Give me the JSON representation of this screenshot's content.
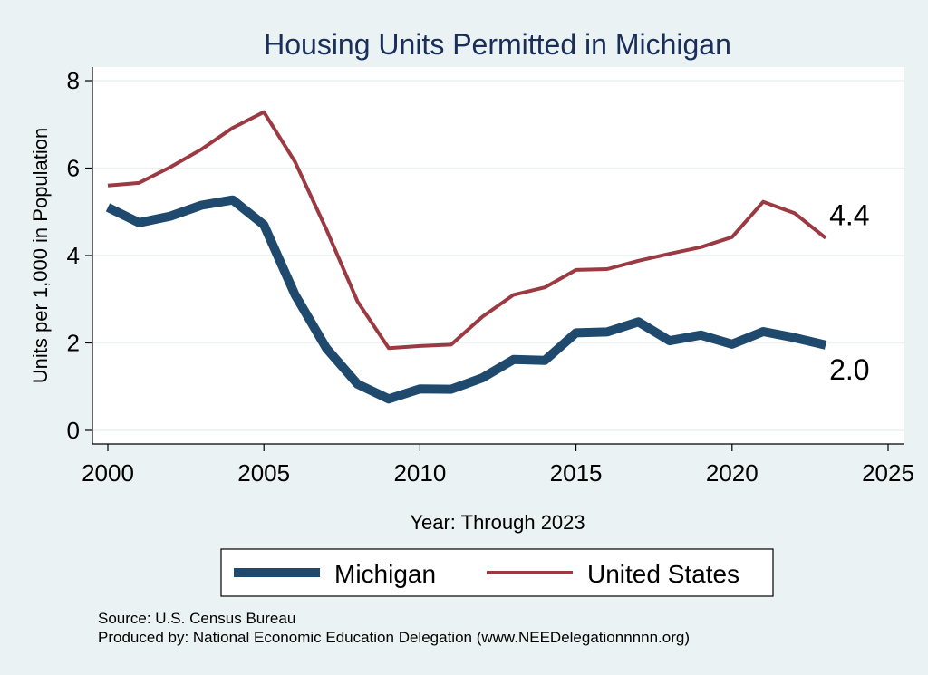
{
  "chart_data": {
    "type": "line",
    "title": "Housing Units Permitted in Michigan",
    "xlabel": "Year: Through 2023",
    "ylabel": "Units per 1,000 in Population",
    "xlim": [
      2000,
      2025
    ],
    "ylim": [
      0,
      8
    ],
    "xticks": [
      "2000",
      "2005",
      "2010",
      "2015",
      "2020",
      "2025"
    ],
    "yticks": [
      "0",
      "2",
      "4",
      "6",
      "8"
    ],
    "grid": true,
    "legend_placement": "bottom",
    "x": [
      2000,
      2001,
      2002,
      2003,
      2004,
      2005,
      2006,
      2007,
      2008,
      2009,
      2010,
      2011,
      2012,
      2013,
      2014,
      2015,
      2016,
      2017,
      2018,
      2019,
      2020,
      2021,
      2022,
      2023
    ],
    "series": [
      {
        "name": "Michigan",
        "color": "#1F4A6E",
        "values": [
          5.1,
          4.75,
          4.9,
          5.15,
          5.27,
          4.7,
          3.1,
          1.88,
          1.06,
          0.72,
          0.95,
          0.94,
          1.2,
          1.62,
          1.6,
          2.23,
          2.25,
          2.48,
          2.05,
          2.18,
          1.97,
          2.26,
          2.12,
          1.95
        ],
        "end_label": "2.0"
      },
      {
        "name": "United States",
        "color": "#9B3A42",
        "values": [
          5.6,
          5.66,
          6.02,
          6.43,
          6.92,
          7.28,
          6.14,
          4.6,
          2.95,
          1.88,
          1.93,
          1.96,
          2.6,
          3.1,
          3.27,
          3.67,
          3.69,
          3.88,
          4.04,
          4.19,
          4.42,
          5.23,
          4.97,
          4.4
        ],
        "end_label": "4.4"
      }
    ]
  },
  "footer": {
    "source": "Source: U.S. Census Bureau",
    "produced_by": "Produced by: National Economic Education Delegation (www.NEEDelegationnnnn.org)"
  }
}
